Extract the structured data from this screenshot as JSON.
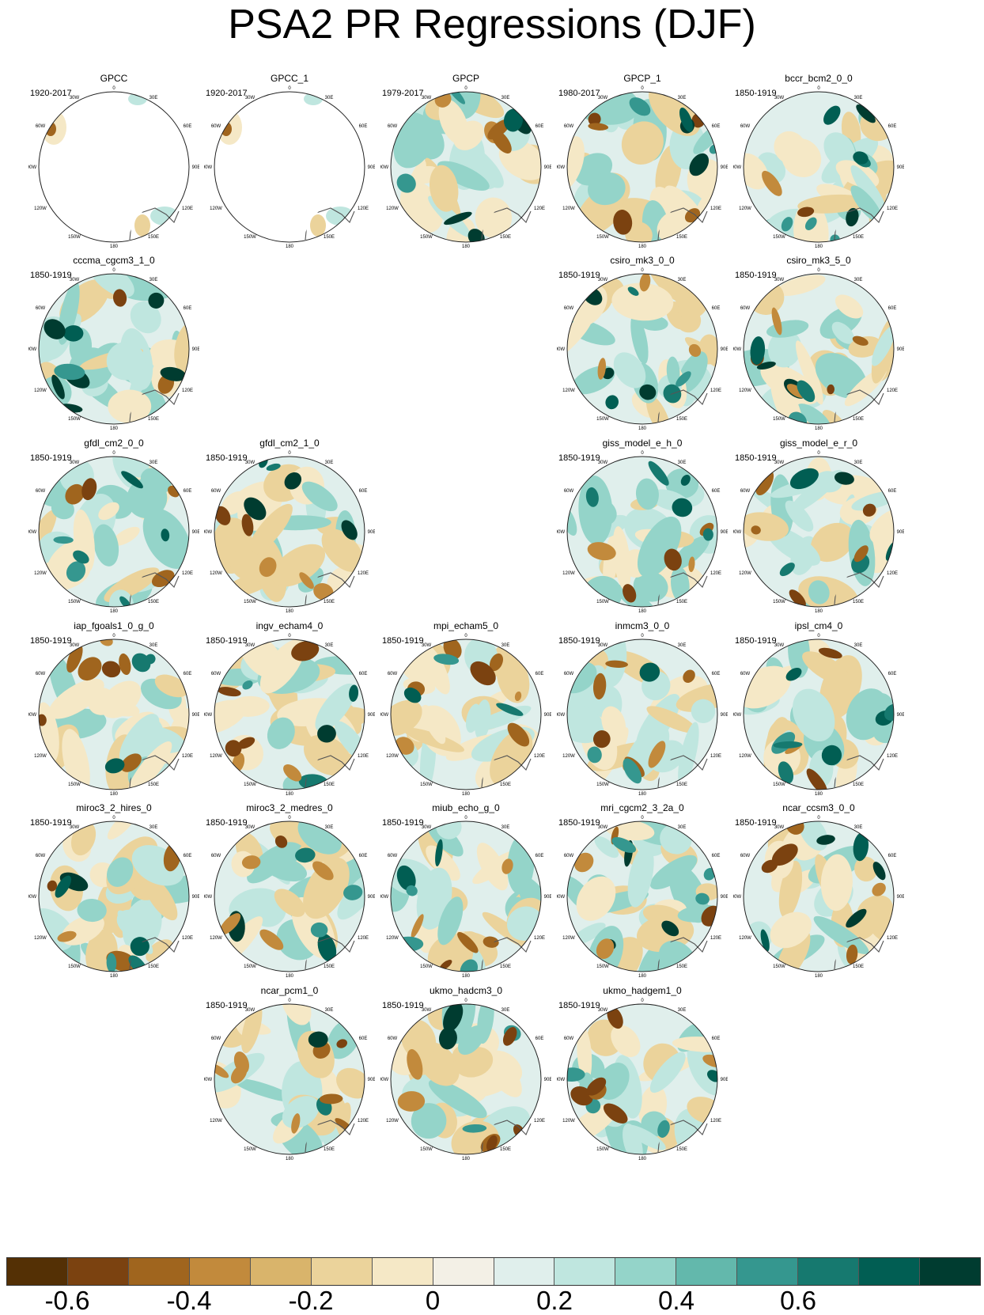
{
  "title": "PSA2 PR Regressions (DJF)",
  "lon_labels": [
    "0",
    "30E",
    "60E",
    "90E",
    "120E",
    "150E",
    "180",
    "150W",
    "120W",
    "90W",
    "60W",
    "30W"
  ],
  "panels": [
    {
      "name": "GPCC",
      "years": "1920-2017",
      "row": 0,
      "col": 0,
      "masked": true
    },
    {
      "name": "GPCC_1",
      "years": "1920-2017",
      "row": 0,
      "col": 1,
      "masked": true
    },
    {
      "name": "GPCP",
      "years": "1979-2017",
      "row": 0,
      "col": 2
    },
    {
      "name": "GPCP_1",
      "years": "1980-2017",
      "row": 0,
      "col": 3
    },
    {
      "name": "bccr_bcm2_0_0",
      "years": "1850-1919",
      "row": 0,
      "col": 4
    },
    {
      "name": "cccma_cgcm3_1_0",
      "years": "1850-1919",
      "row": 1,
      "col": 0
    },
    {
      "name": "csiro_mk3_0_0",
      "years": "1850-1919",
      "row": 1,
      "col": 3
    },
    {
      "name": "csiro_mk3_5_0",
      "years": "1850-1919",
      "row": 1,
      "col": 4
    },
    {
      "name": "gfdl_cm2_0_0",
      "years": "1850-1919",
      "row": 2,
      "col": 0
    },
    {
      "name": "gfdl_cm2_1_0",
      "years": "1850-1919",
      "row": 2,
      "col": 1
    },
    {
      "name": "giss_model_e_h_0",
      "years": "1850-1919",
      "row": 2,
      "col": 3
    },
    {
      "name": "giss_model_e_r_0",
      "years": "1850-1919",
      "row": 2,
      "col": 4
    },
    {
      "name": "iap_fgoals1_0_g_0",
      "years": "1850-1919",
      "row": 3,
      "col": 0
    },
    {
      "name": "ingv_echam4_0",
      "years": "1850-1919",
      "row": 3,
      "col": 1
    },
    {
      "name": "mpi_echam5_0",
      "years": "1850-1919",
      "row": 3,
      "col": 2
    },
    {
      "name": "inmcm3_0_0",
      "years": "1850-1919",
      "row": 3,
      "col": 3
    },
    {
      "name": "ipsl_cm4_0",
      "years": "1850-1919",
      "row": 3,
      "col": 4
    },
    {
      "name": "miroc3_2_hires_0",
      "years": "1850-1919",
      "row": 4,
      "col": 0
    },
    {
      "name": "miroc3_2_medres_0",
      "years": "1850-1919",
      "row": 4,
      "col": 1
    },
    {
      "name": "miub_echo_g_0",
      "years": "1850-1919",
      "row": 4,
      "col": 2
    },
    {
      "name": "mri_cgcm2_3_2a_0",
      "years": "1850-1919",
      "row": 4,
      "col": 3
    },
    {
      "name": "ncar_ccsm3_0_0",
      "years": "1850-1919",
      "row": 4,
      "col": 4
    },
    {
      "name": "ncar_pcm1_0",
      "years": "1850-1919",
      "row": 5,
      "col": 1
    },
    {
      "name": "ukmo_hadcm3_0",
      "years": "1850-1919",
      "row": 5,
      "col": 2
    },
    {
      "name": "ukmo_hadgem1_0",
      "years": "1850-1919",
      "row": 5,
      "col": 3
    }
  ],
  "colorbar": {
    "colors": [
      "#543005",
      "#7b4210",
      "#a0651e",
      "#c28a3c",
      "#d9b46b",
      "#ebd39b",
      "#f5e8c6",
      "#f3f0e6",
      "#e0efec",
      "#bfe6df",
      "#94d4c9",
      "#63b8ac",
      "#35978f",
      "#16796f",
      "#015e53",
      "#003c30"
    ],
    "labels": [
      "-0.6",
      "-0.4",
      "-0.2",
      "0",
      "0.2",
      "0.4",
      "0.6"
    ],
    "label_positions": [
      1,
      3,
      5,
      7,
      9,
      11,
      13
    ]
  }
}
